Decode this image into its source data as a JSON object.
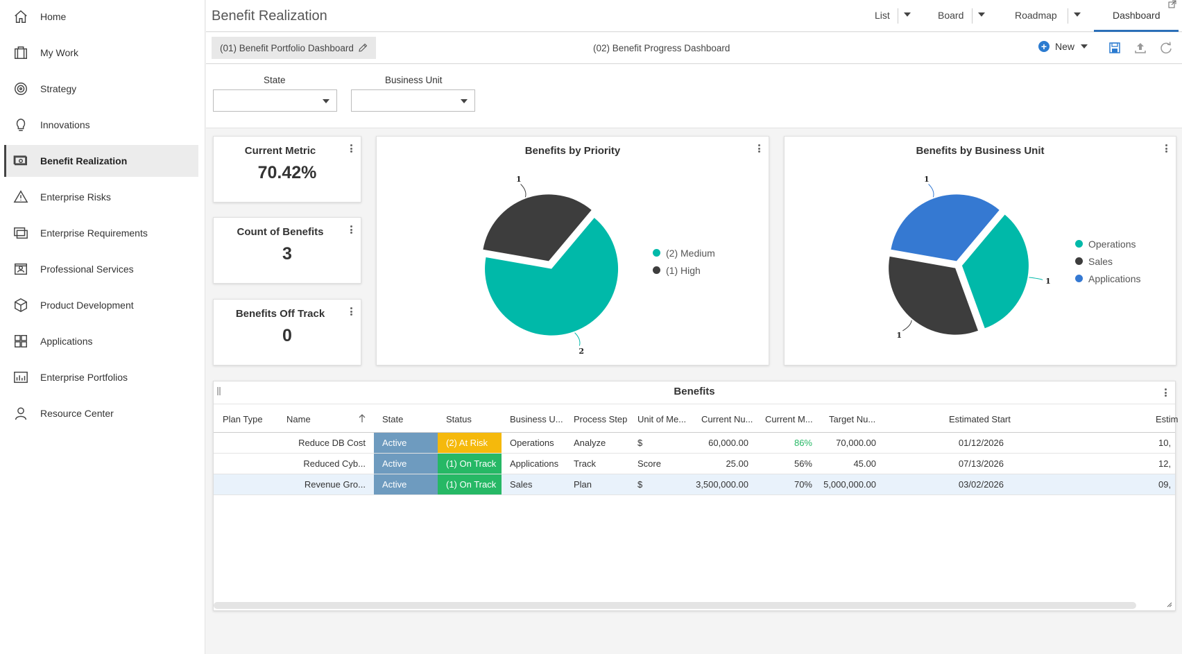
{
  "sidebar": {
    "items": [
      {
        "label": "Home",
        "icon": "home-icon"
      },
      {
        "label": "My Work",
        "icon": "briefcase-icon"
      },
      {
        "label": "Strategy",
        "icon": "target-icon"
      },
      {
        "label": "Innovations",
        "icon": "lightbulb-icon"
      },
      {
        "label": "Benefit Realization",
        "icon": "money-icon",
        "active": true
      },
      {
        "label": "Enterprise Risks",
        "icon": "warning-icon"
      },
      {
        "label": "Enterprise Requirements",
        "icon": "requirements-icon"
      },
      {
        "label": "Professional Services",
        "icon": "id-card-icon"
      },
      {
        "label": "Product Development",
        "icon": "box-icon"
      },
      {
        "label": "Applications",
        "icon": "grid-icon"
      },
      {
        "label": "Enterprise Portfolios",
        "icon": "chart-icon"
      },
      {
        "label": "Resource Center",
        "icon": "person-icon"
      }
    ]
  },
  "header": {
    "title": "Benefit Realization",
    "views": {
      "list": "List",
      "board": "Board",
      "roadmap": "Roadmap",
      "dashboard": "Dashboard"
    }
  },
  "dashboards": {
    "tab1": "(01) Benefit Portfolio Dashboard",
    "tab2": "(02) Benefit Progress Dashboard",
    "new_label": "New"
  },
  "filters": {
    "state_label": "State",
    "state_value": "",
    "business_unit_label": "Business Unit",
    "business_unit_value": ""
  },
  "metrics": {
    "current_metric": {
      "title": "Current Metric",
      "value": "70.42%"
    },
    "count_of_benefits": {
      "title": "Count of Benefits",
      "value": "3"
    },
    "benefits_off_track": {
      "title": "Benefits Off Track",
      "value": "0"
    }
  },
  "colors": {
    "teal": "#00b9a9",
    "dark": "#3d3d3d",
    "blue": "#3579d2",
    "active_state": "#6e9bbf",
    "at_risk": "#f5b90c",
    "on_track": "#26b865",
    "green_text": "#26b865"
  },
  "chart_data": [
    {
      "type": "pie",
      "title": "Benefits by Priority",
      "slices": [
        {
          "label": "(2) Medium",
          "value": 2,
          "color": "#00b9a9"
        },
        {
          "label": "(1) High",
          "value": 1,
          "color": "#3d3d3d"
        }
      ],
      "data_labels": [
        "2",
        "1"
      ]
    },
    {
      "type": "pie",
      "title": "Benefits by Business Unit",
      "slices": [
        {
          "label": "Operations",
          "value": 1,
          "color": "#00b9a9"
        },
        {
          "label": "Sales",
          "value": 1,
          "color": "#3d3d3d"
        },
        {
          "label": "Applications",
          "value": 1,
          "color": "#3579d2"
        }
      ],
      "data_labels": [
        "1",
        "1",
        "1"
      ]
    }
  ],
  "table": {
    "title": "Benefits",
    "columns": [
      "Plan Type",
      "Name",
      "State",
      "Status",
      "Business U...",
      "Process Step",
      "Unit of Me...",
      "Current Nu...",
      "Current M...",
      "Target Nu...",
      "Estimated Start",
      "Estim"
    ],
    "rows": [
      {
        "plan_type": "",
        "name": "Reduce DB Cost",
        "state": "Active",
        "status": "(2) At Risk",
        "business_unit": "Operations",
        "process_step": "Analyze",
        "unit": "$",
        "current_num": "60,000.00",
        "current_metric": "86%",
        "target_num": "70,000.00",
        "est_start": "01/12/2026",
        "est_end": "10,"
      },
      {
        "plan_type": "",
        "name": "Reduced Cyb...",
        "state": "Active",
        "status": "(1) On Track",
        "business_unit": "Applications",
        "process_step": "Track",
        "unit": "Score",
        "current_num": "25.00",
        "current_metric": "56%",
        "target_num": "45.00",
        "est_start": "07/13/2026",
        "est_end": "12,"
      },
      {
        "plan_type": "",
        "name": "Revenue Gro...",
        "state": "Active",
        "status": "(1) On Track",
        "business_unit": "Sales",
        "process_step": "Plan",
        "unit": "$",
        "current_num": "3,500,000.00",
        "current_metric": "70%",
        "target_num": "5,000,000.00",
        "est_start": "03/02/2026",
        "est_end": "09,"
      }
    ]
  }
}
